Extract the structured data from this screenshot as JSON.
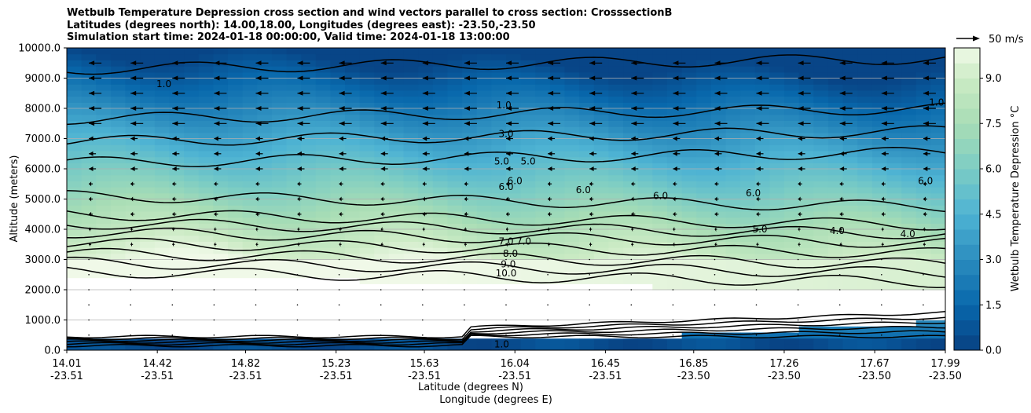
{
  "chart_data": {
    "type": "heatmap",
    "title": [
      "Wetbulb Temperature Depression cross section and wind vectors parallel to cross section: CrosssectionB",
      "Latitudes (degrees north): 14.00,18.00, Longitudes (degrees east): -23.50,-23.50",
      "Simulation start time: 2024-01-18 00:00:00, Valid time: 2024-01-18 13:00:00"
    ],
    "xlabel": "Latitude (degrees N)",
    "xlabel2": "Longitude (degrees E)",
    "ylabel": "Altitude (meters)",
    "ylim": [
      0,
      10000
    ],
    "y_ticks": [
      0,
      1000,
      2000,
      3000,
      4000,
      5000,
      6000,
      7000,
      8000,
      9000,
      10000
    ],
    "y_tick_labels": [
      "0.0",
      "1000.0",
      "2000.0",
      "3000.0",
      "4000.0",
      "5000.0",
      "6000.0",
      "7000.0",
      "8000.0",
      "9000.0",
      "10000.0"
    ],
    "x_ticks": [
      {
        "lat": "14.01",
        "lon": "-23.51"
      },
      {
        "lat": "14.42",
        "lon": "-23.51"
      },
      {
        "lat": "14.82",
        "lon": "-23.51"
      },
      {
        "lat": "15.23",
        "lon": "-23.51"
      },
      {
        "lat": "15.63",
        "lon": "-23.51"
      },
      {
        "lat": "16.04",
        "lon": "-23.51"
      },
      {
        "lat": "16.45",
        "lon": "-23.51"
      },
      {
        "lat": "16.85",
        "lon": "-23.50"
      },
      {
        "lat": "17.26",
        "lon": "-23.50"
      },
      {
        "lat": "17.67",
        "lon": "-23.50"
      },
      {
        "lat": "17.99",
        "lon": "-23.50"
      }
    ],
    "grid": "horizontal",
    "colorbar": {
      "label": "Wetbulb Temperature Depression °C",
      "range": [
        0,
        10
      ],
      "ticks": [
        0.0,
        1.5,
        3.0,
        4.5,
        6.0,
        7.5,
        9.0
      ],
      "tick_labels": [
        "0.0",
        "1.5",
        "3.0",
        "4.5",
        "6.0",
        "7.5",
        "9.0"
      ]
    },
    "quiver_key": {
      "label": "50 m/s"
    },
    "contour_labels": [
      {
        "text": "1.0",
        "lat": 14.45,
        "alt": 8800
      },
      {
        "text": "1.0",
        "lat": 15.99,
        "alt": 8100
      },
      {
        "text": "3.0",
        "lat": 16.0,
        "alt": 7150
      },
      {
        "text": "5.0",
        "lat": 15.98,
        "alt": 6250
      },
      {
        "text": "5.0",
        "lat": 16.1,
        "alt": 6250
      },
      {
        "text": "6.0",
        "lat": 16.04,
        "alt": 5600
      },
      {
        "text": "6.0",
        "lat": 16.0,
        "alt": 5400
      },
      {
        "text": "6.0",
        "lat": 16.35,
        "alt": 5300
      },
      {
        "text": "6.0",
        "lat": 16.7,
        "alt": 5100
      },
      {
        "text": "6.0",
        "lat": 17.12,
        "alt": 5200
      },
      {
        "text": "6.0",
        "lat": 17.9,
        "alt": 5600
      },
      {
        "text": "5.0",
        "lat": 17.15,
        "alt": 4000
      },
      {
        "text": "4.0",
        "lat": 17.5,
        "alt": 3950
      },
      {
        "text": "4.0",
        "lat": 17.82,
        "alt": 3850
      },
      {
        "text": "7.0",
        "lat": 16.0,
        "alt": 3600
      },
      {
        "text": "7.0",
        "lat": 16.08,
        "alt": 3600
      },
      {
        "text": "8.0",
        "lat": 16.02,
        "alt": 3200
      },
      {
        "text": "9.0",
        "lat": 16.01,
        "alt": 2850
      },
      {
        "text": "10.0",
        "lat": 16.0,
        "alt": 2550
      },
      {
        "text": "1.0",
        "lat": 15.98,
        "alt": 200
      },
      {
        "text": "1.0",
        "lat": 17.95,
        "alt": 8200
      }
    ]
  }
}
